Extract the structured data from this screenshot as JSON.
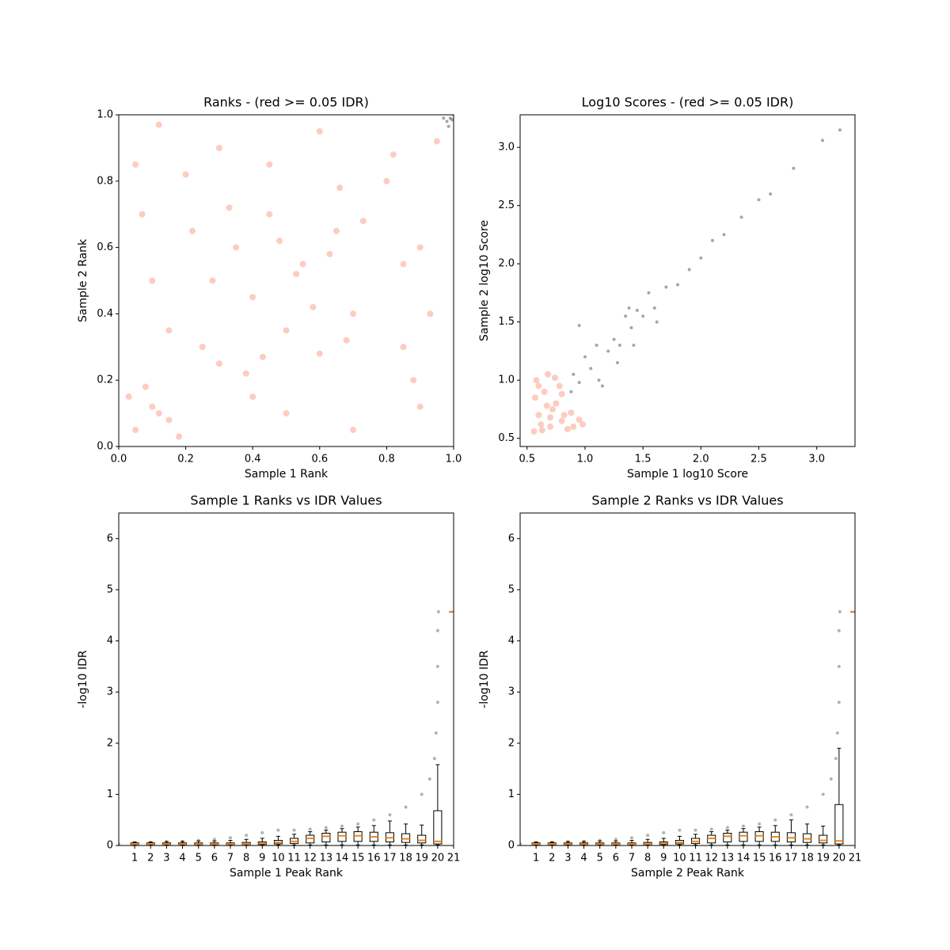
{
  "chart_data": [
    {
      "type": "scatter",
      "title": "Ranks - (red >= 0.05 IDR)",
      "xlabel": "Sample 1 Rank",
      "ylabel": "Sample 2 Rank",
      "xlim": [
        0,
        1
      ],
      "ylim": [
        0,
        1
      ],
      "xticks": [
        {
          "value": 0,
          "label": "0.0"
        },
        0.2,
        0.4,
        0.6,
        0.8,
        {
          "value": 1,
          "label": "1.0"
        }
      ],
      "yticks": [
        {
          "value": 0,
          "label": "0.0"
        },
        0.2,
        0.4,
        0.6,
        0.8,
        {
          "value": 1,
          "label": "1.0"
        }
      ],
      "series": [
        {
          "color": "#fa8f73",
          "x": [
            0.05,
            0.1,
            0.15,
            0.03,
            0.18,
            0.08,
            0.12,
            0.25,
            0.3,
            0.35,
            0.4,
            0.45,
            0.5,
            0.55,
            0.6,
            0.65,
            0.7,
            0.28,
            0.38,
            0.48,
            0.58,
            0.68,
            0.33,
            0.43,
            0.53,
            0.63,
            0.73,
            0.1,
            0.05,
            0.15,
            0.3,
            0.5,
            0.7,
            0.85,
            0.9,
            0.95,
            0.8,
            0.6,
            0.4,
            0.2,
            0.9,
            0.85,
            0.12,
            0.82,
            0.93,
            0.45,
            0.22,
            0.66,
            0.07,
            0.88
          ],
          "y": [
            0.05,
            0.12,
            0.08,
            0.15,
            0.03,
            0.18,
            0.1,
            0.3,
            0.25,
            0.6,
            0.45,
            0.7,
            0.35,
            0.55,
            0.28,
            0.65,
            0.4,
            0.5,
            0.22,
            0.62,
            0.42,
            0.32,
            0.72,
            0.27,
            0.52,
            0.58,
            0.68,
            0.5,
            0.85,
            0.35,
            0.9,
            0.1,
            0.05,
            0.3,
            0.6,
            0.92,
            0.8,
            0.95,
            0.15,
            0.82,
            0.12,
            0.55,
            0.97,
            0.88,
            0.4,
            0.85,
            0.65,
            0.78,
            0.7,
            0.2
          ]
        },
        {
          "color": "#000000",
          "x": [
            0.98,
            0.99,
            0.995,
            0.97,
            0.985,
            1.0
          ],
          "y": [
            0.98,
            0.99,
            0.985,
            0.99,
            0.965,
            1.0
          ]
        }
      ]
    },
    {
      "type": "scatter",
      "title": "Log10 Scores - (red >= 0.05 IDR)",
      "xlabel": "Sample 1 log10 Score",
      "ylabel": "Sample 2 log10 Score",
      "xlim": [
        0.44,
        3.33
      ],
      "ylim": [
        0.43,
        3.28
      ],
      "xticks": [
        0.5,
        {
          "value": 1,
          "label": "1.0"
        },
        1.5,
        {
          "value": 2,
          "label": "2.0"
        },
        2.5,
        {
          "value": 3,
          "label": "3.0"
        }
      ],
      "yticks": [
        0.5,
        {
          "value": 1,
          "label": "1.0"
        },
        1.5,
        {
          "value": 2,
          "label": "2.0"
        },
        2.5,
        {
          "value": 3,
          "label": "3.0"
        }
      ],
      "series": [
        {
          "color": "#fa8f73",
          "x": [
            0.56,
            0.6,
            0.65,
            0.7,
            0.75,
            0.8,
            0.85,
            0.58,
            0.62,
            0.68,
            0.72,
            0.78,
            0.82,
            0.9,
            0.95,
            0.57,
            0.63,
            0.67,
            0.74,
            0.88,
            0.98,
            0.6,
            0.7,
            0.8
          ],
          "y": [
            0.56,
            0.7,
            0.9,
            0.6,
            0.8,
            0.65,
            0.58,
            1.0,
            0.62,
            1.05,
            0.75,
            0.95,
            0.7,
            0.6,
            0.66,
            0.85,
            0.57,
            0.78,
            1.02,
            0.72,
            0.62,
            0.95,
            0.68,
            0.88
          ]
        },
        {
          "color": "#000000",
          "x": [
            0.88,
            0.9,
            0.95,
            1.0,
            1.05,
            1.1,
            1.15,
            1.2,
            1.25,
            1.3,
            1.35,
            1.4,
            1.45,
            1.5,
            1.55,
            1.6,
            1.7,
            1.8,
            1.9,
            2.0,
            2.1,
            2.2,
            2.35,
            2.5,
            2.6,
            2.8,
            3.05,
            3.2,
            1.12,
            1.28,
            1.42,
            1.62,
            0.95,
            1.38
          ],
          "y": [
            0.9,
            1.05,
            0.98,
            1.2,
            1.1,
            1.3,
            0.95,
            1.25,
            1.35,
            1.3,
            1.55,
            1.45,
            1.6,
            1.55,
            1.75,
            1.62,
            1.8,
            1.82,
            1.95,
            2.05,
            2.2,
            2.25,
            2.4,
            2.55,
            2.6,
            2.82,
            3.06,
            3.15,
            1.0,
            1.15,
            1.3,
            1.5,
            1.47,
            1.62
          ]
        }
      ]
    },
    {
      "type": "box",
      "title": "Sample 1 Ranks vs IDR Values",
      "xlabel": "Sample 1 Peak Rank",
      "ylabel": "-log10 IDR",
      "xlim": [
        0,
        21
      ],
      "ylim": [
        0,
        6.5
      ],
      "xticks": [
        1,
        2,
        3,
        4,
        5,
        6,
        7,
        8,
        9,
        10,
        11,
        12,
        13,
        14,
        15,
        16,
        17,
        18,
        19,
        20,
        21
      ],
      "yticks": [
        0,
        1,
        2,
        3,
        4,
        5,
        6
      ],
      "points": {
        "color": "#000000",
        "x": [
          0,
          1,
          2,
          3,
          4,
          5,
          6,
          7,
          8,
          9,
          10,
          11,
          12,
          13,
          14,
          15,
          16,
          17,
          18,
          19,
          19.5,
          19.8,
          19.9,
          20,
          20,
          20,
          20.05
        ],
        "y": [
          0.03,
          0.05,
          0.06,
          0.07,
          0.08,
          0.1,
          0.12,
          0.15,
          0.2,
          0.25,
          0.3,
          0.3,
          0.32,
          0.35,
          0.38,
          0.42,
          0.5,
          0.6,
          0.75,
          1.0,
          1.3,
          1.7,
          2.2,
          2.8,
          3.5,
          4.2,
          4.57
        ]
      },
      "box_color": "#000000",
      "median_color": "#ff7f0e",
      "positions": [
        1,
        2,
        3,
        4,
        5,
        6,
        7,
        8,
        9,
        10,
        11,
        12,
        13,
        14,
        15,
        16,
        17,
        18,
        19,
        20,
        21
      ],
      "whislo": [
        0.01,
        0.01,
        0.01,
        0.01,
        0.01,
        0.01,
        0.01,
        0.01,
        0.01,
        0.01,
        0.01,
        0.01,
        0.01,
        0.01,
        0.01,
        0.01,
        0.01,
        0.01,
        0.01,
        0.01,
        4.57
      ],
      "q1": [
        0.02,
        0.02,
        0.02,
        0.02,
        0.02,
        0.02,
        0.02,
        0.02,
        0.02,
        0.03,
        0.04,
        0.05,
        0.07,
        0.08,
        0.08,
        0.08,
        0.07,
        0.06,
        0.05,
        0.03,
        4.57
      ],
      "med": [
        0.03,
        0.03,
        0.03,
        0.03,
        0.03,
        0.03,
        0.03,
        0.03,
        0.04,
        0.06,
        0.08,
        0.14,
        0.18,
        0.19,
        0.19,
        0.17,
        0.15,
        0.13,
        0.1,
        0.08,
        4.57
      ],
      "q3": [
        0.05,
        0.05,
        0.05,
        0.05,
        0.05,
        0.05,
        0.05,
        0.06,
        0.07,
        0.1,
        0.14,
        0.2,
        0.24,
        0.26,
        0.27,
        0.26,
        0.25,
        0.23,
        0.2,
        0.68,
        4.57
      ],
      "whishi": [
        0.07,
        0.07,
        0.08,
        0.08,
        0.09,
        0.09,
        0.1,
        0.12,
        0.14,
        0.18,
        0.22,
        0.27,
        0.3,
        0.33,
        0.36,
        0.39,
        0.48,
        0.42,
        0.4,
        1.58,
        4.57
      ]
    },
    {
      "type": "box",
      "title": "Sample 2 Ranks vs IDR Values",
      "xlabel": "Sample 2 Peak Rank",
      "ylabel": "-log10 IDR",
      "xlim": [
        0,
        21
      ],
      "ylim": [
        0,
        6.5
      ],
      "xticks": [
        1,
        2,
        3,
        4,
        5,
        6,
        7,
        8,
        9,
        10,
        11,
        12,
        13,
        14,
        15,
        16,
        17,
        18,
        19,
        20,
        21
      ],
      "yticks": [
        0,
        1,
        2,
        3,
        4,
        5,
        6
      ],
      "points": {
        "color": "#000000",
        "x": [
          0,
          1,
          2,
          3,
          4,
          5,
          6,
          7,
          8,
          9,
          10,
          11,
          12,
          13,
          14,
          15,
          16,
          17,
          18,
          19,
          19.5,
          19.8,
          19.9,
          20,
          20,
          20,
          20.05
        ],
        "y": [
          0.03,
          0.05,
          0.06,
          0.07,
          0.08,
          0.1,
          0.12,
          0.15,
          0.2,
          0.25,
          0.3,
          0.3,
          0.32,
          0.35,
          0.38,
          0.42,
          0.5,
          0.6,
          0.75,
          1.0,
          1.3,
          1.7,
          2.2,
          2.8,
          3.5,
          4.2,
          4.57
        ]
      },
      "box_color": "#000000",
      "median_color": "#ff7f0e",
      "positions": [
        1,
        2,
        3,
        4,
        5,
        6,
        7,
        8,
        9,
        10,
        11,
        12,
        13,
        14,
        15,
        16,
        17,
        18,
        19,
        20,
        21
      ],
      "whislo": [
        0.01,
        0.01,
        0.01,
        0.01,
        0.01,
        0.01,
        0.01,
        0.01,
        0.01,
        0.01,
        0.01,
        0.01,
        0.01,
        0.01,
        0.01,
        0.01,
        0.01,
        0.01,
        0.01,
        0.01,
        4.57
      ],
      "q1": [
        0.02,
        0.02,
        0.02,
        0.02,
        0.02,
        0.02,
        0.02,
        0.02,
        0.02,
        0.03,
        0.04,
        0.05,
        0.07,
        0.08,
        0.08,
        0.08,
        0.07,
        0.06,
        0.05,
        0.03,
        4.57
      ],
      "med": [
        0.03,
        0.03,
        0.03,
        0.03,
        0.03,
        0.03,
        0.03,
        0.03,
        0.04,
        0.06,
        0.08,
        0.14,
        0.18,
        0.19,
        0.19,
        0.17,
        0.15,
        0.13,
        0.1,
        0.09,
        4.57
      ],
      "q3": [
        0.05,
        0.05,
        0.05,
        0.05,
        0.05,
        0.05,
        0.05,
        0.06,
        0.07,
        0.1,
        0.14,
        0.2,
        0.24,
        0.26,
        0.27,
        0.26,
        0.25,
        0.23,
        0.2,
        0.8,
        4.57
      ],
      "whishi": [
        0.07,
        0.07,
        0.08,
        0.08,
        0.09,
        0.09,
        0.1,
        0.12,
        0.14,
        0.18,
        0.22,
        0.27,
        0.3,
        0.33,
        0.36,
        0.39,
        0.5,
        0.42,
        0.38,
        1.9,
        4.57
      ]
    }
  ]
}
